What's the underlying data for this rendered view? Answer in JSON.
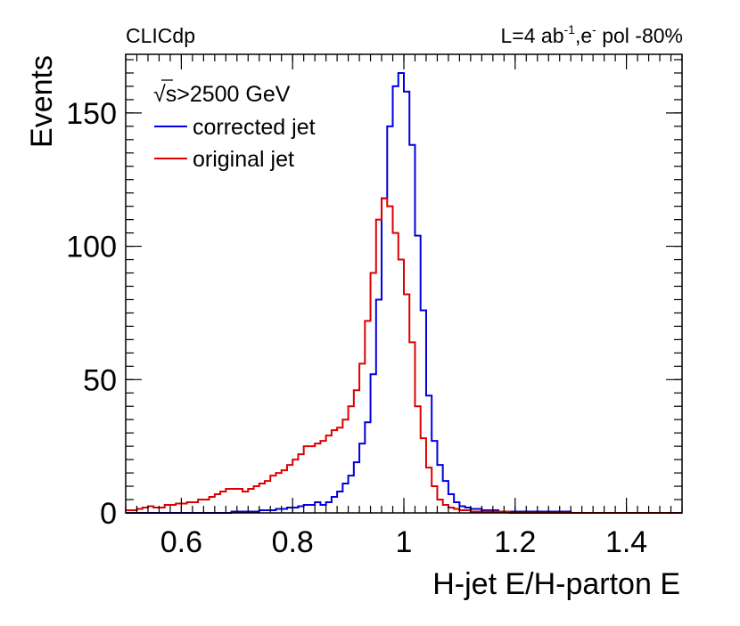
{
  "chart_data": {
    "type": "line",
    "header_left": "CLICdp",
    "header_right": {
      "prefix": "L=4 ab",
      "sup1": "-1",
      "mid": ",e",
      "sup2": "-",
      "suffix": " pol -80%"
    },
    "annotation": {
      "sqrt_symbol": "√",
      "sqrt_arg": "s",
      "rest": ">2500 GeV"
    },
    "xlabel": "H-jet E/H-parton E",
    "ylabel": "Events",
    "xlim": [
      0.5,
      1.5
    ],
    "ylim": [
      0,
      172
    ],
    "grid": false,
    "legend_placement": "top-left",
    "x_ticks": [
      {
        "value": 0.6,
        "label": "0.6"
      },
      {
        "value": 0.8,
        "label": "0.8"
      },
      {
        "value": 1.0,
        "label": "1"
      },
      {
        "value": 1.2,
        "label": "1.2"
      },
      {
        "value": 1.4,
        "label": "1.4"
      }
    ],
    "y_ticks": [
      {
        "value": 0,
        "label": "0"
      },
      {
        "value": 50,
        "label": "50"
      },
      {
        "value": 100,
        "label": "100"
      },
      {
        "value": 150,
        "label": "150"
      }
    ],
    "x": [
      0.5,
      0.51,
      0.52,
      0.53,
      0.54,
      0.55,
      0.56,
      0.57,
      0.58,
      0.59,
      0.6,
      0.61,
      0.62,
      0.63,
      0.64,
      0.65,
      0.66,
      0.67,
      0.68,
      0.69,
      0.7,
      0.71,
      0.72,
      0.73,
      0.74,
      0.75,
      0.76,
      0.77,
      0.78,
      0.79,
      0.8,
      0.81,
      0.82,
      0.83,
      0.84,
      0.85,
      0.86,
      0.87,
      0.88,
      0.89,
      0.9,
      0.91,
      0.92,
      0.93,
      0.94,
      0.95,
      0.96,
      0.97,
      0.98,
      0.99,
      1.0,
      1.01,
      1.02,
      1.03,
      1.04,
      1.05,
      1.06,
      1.07,
      1.08,
      1.09,
      1.1,
      1.11,
      1.12,
      1.13,
      1.14,
      1.15,
      1.16,
      1.17,
      1.18,
      1.19,
      1.2,
      1.25,
      1.3,
      1.35,
      1.4,
      1.45,
      1.5
    ],
    "series": [
      {
        "name": "corrected jet",
        "color": "#0000dd",
        "values": [
          0,
          0,
          0,
          0,
          0,
          0,
          0,
          0,
          0,
          0,
          0,
          0,
          0,
          0,
          0,
          0,
          0,
          0,
          0,
          0.5,
          0.5,
          0.5,
          0.5,
          0.5,
          1,
          1,
          1,
          1.5,
          1.5,
          2,
          2,
          2.5,
          3,
          3,
          4,
          3,
          4,
          6,
          8,
          11,
          14,
          19,
          26,
          34,
          52,
          80,
          118,
          145,
          160,
          165,
          158,
          138,
          104,
          76,
          44,
          27,
          18,
          12,
          7,
          4,
          2.5,
          2,
          1.5,
          1.5,
          1,
          1,
          1,
          0.5,
          0.5,
          0.5,
          0.5,
          0.5,
          0,
          0,
          0,
          0,
          0
        ]
      },
      {
        "name": "original jet",
        "color": "#dd0000",
        "values": [
          1,
          1,
          1.5,
          2,
          2.5,
          2,
          2,
          3,
          3,
          3.5,
          3.5,
          4,
          4,
          5,
          5,
          6,
          7,
          8,
          9,
          9,
          9,
          8,
          9,
          10,
          11,
          12,
          14,
          15,
          16,
          18,
          20,
          22,
          25,
          25,
          26,
          27,
          29,
          31,
          32,
          35,
          40,
          46,
          56,
          72,
          90,
          110,
          118,
          115,
          105,
          95,
          82,
          64,
          40,
          28,
          17,
          10,
          5,
          3,
          2,
          1.5,
          1,
          1,
          0.5,
          0.5,
          0.5,
          0.5,
          0.5,
          0.5,
          0.5,
          0,
          0,
          0,
          0,
          0,
          0,
          0,
          0
        ]
      }
    ]
  }
}
